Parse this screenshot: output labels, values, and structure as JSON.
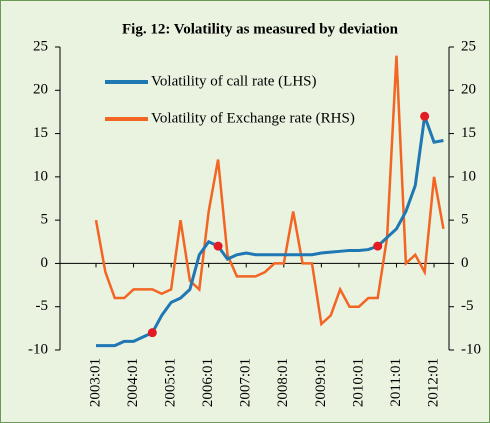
{
  "chart_data": {
    "type": "line",
    "title": "Fig. 12: Volatility as measured by deviation",
    "categories": [
      "2003:01",
      null,
      null,
      null,
      "2004:01",
      null,
      null,
      null,
      "2005:01",
      null,
      null,
      null,
      "2006:01",
      null,
      null,
      null,
      "2007:01",
      null,
      null,
      null,
      "2008:01",
      null,
      null,
      null,
      "2009:01",
      null,
      null,
      null,
      "2010:01",
      null,
      null,
      null,
      "2011:01",
      null,
      null,
      null,
      "2012:01",
      null
    ],
    "series": [
      {
        "name": "Volatility of call rate (LHS)",
        "color": "#1f77b4",
        "axis": "y",
        "values": [
          -9.5,
          -9.5,
          -9.5,
          -9,
          -9,
          -8.5,
          -8,
          -6,
          -4.5,
          -4,
          -3,
          1,
          2.5,
          2,
          0.5,
          1,
          1.2,
          1,
          1,
          1,
          1,
          1,
          1,
          1,
          1.2,
          1.3,
          1.4,
          1.5,
          1.5,
          1.6,
          2,
          3,
          4,
          6,
          9,
          17,
          14,
          14.2
        ]
      },
      {
        "name": "Volatility of Exchange rate (RHS)",
        "color": "#f26522",
        "axis": "y2",
        "values": [
          5,
          -1,
          -4,
          -4,
          -3,
          -3,
          -3,
          -3.5,
          -3,
          5,
          -2,
          -3,
          6,
          12,
          1,
          -1.5,
          -1.5,
          -1.5,
          -1,
          0,
          0,
          6,
          0,
          0,
          -7,
          -6,
          -3,
          -5,
          -5,
          -4,
          -4,
          3,
          24,
          0,
          1,
          -1,
          10,
          4
        ]
      }
    ],
    "highlight_indices": [
      6,
      13,
      30,
      35
    ],
    "highlight_color": "#e31b23",
    "ylim": [
      -10,
      25
    ],
    "yticks": [
      -10,
      -5,
      0,
      5,
      10,
      15,
      20,
      25
    ],
    "y2lim": [
      -10,
      25
    ],
    "y2ticks": [
      -10,
      -5,
      0,
      5,
      10,
      15,
      20,
      25
    ],
    "legend": "top-left"
  }
}
